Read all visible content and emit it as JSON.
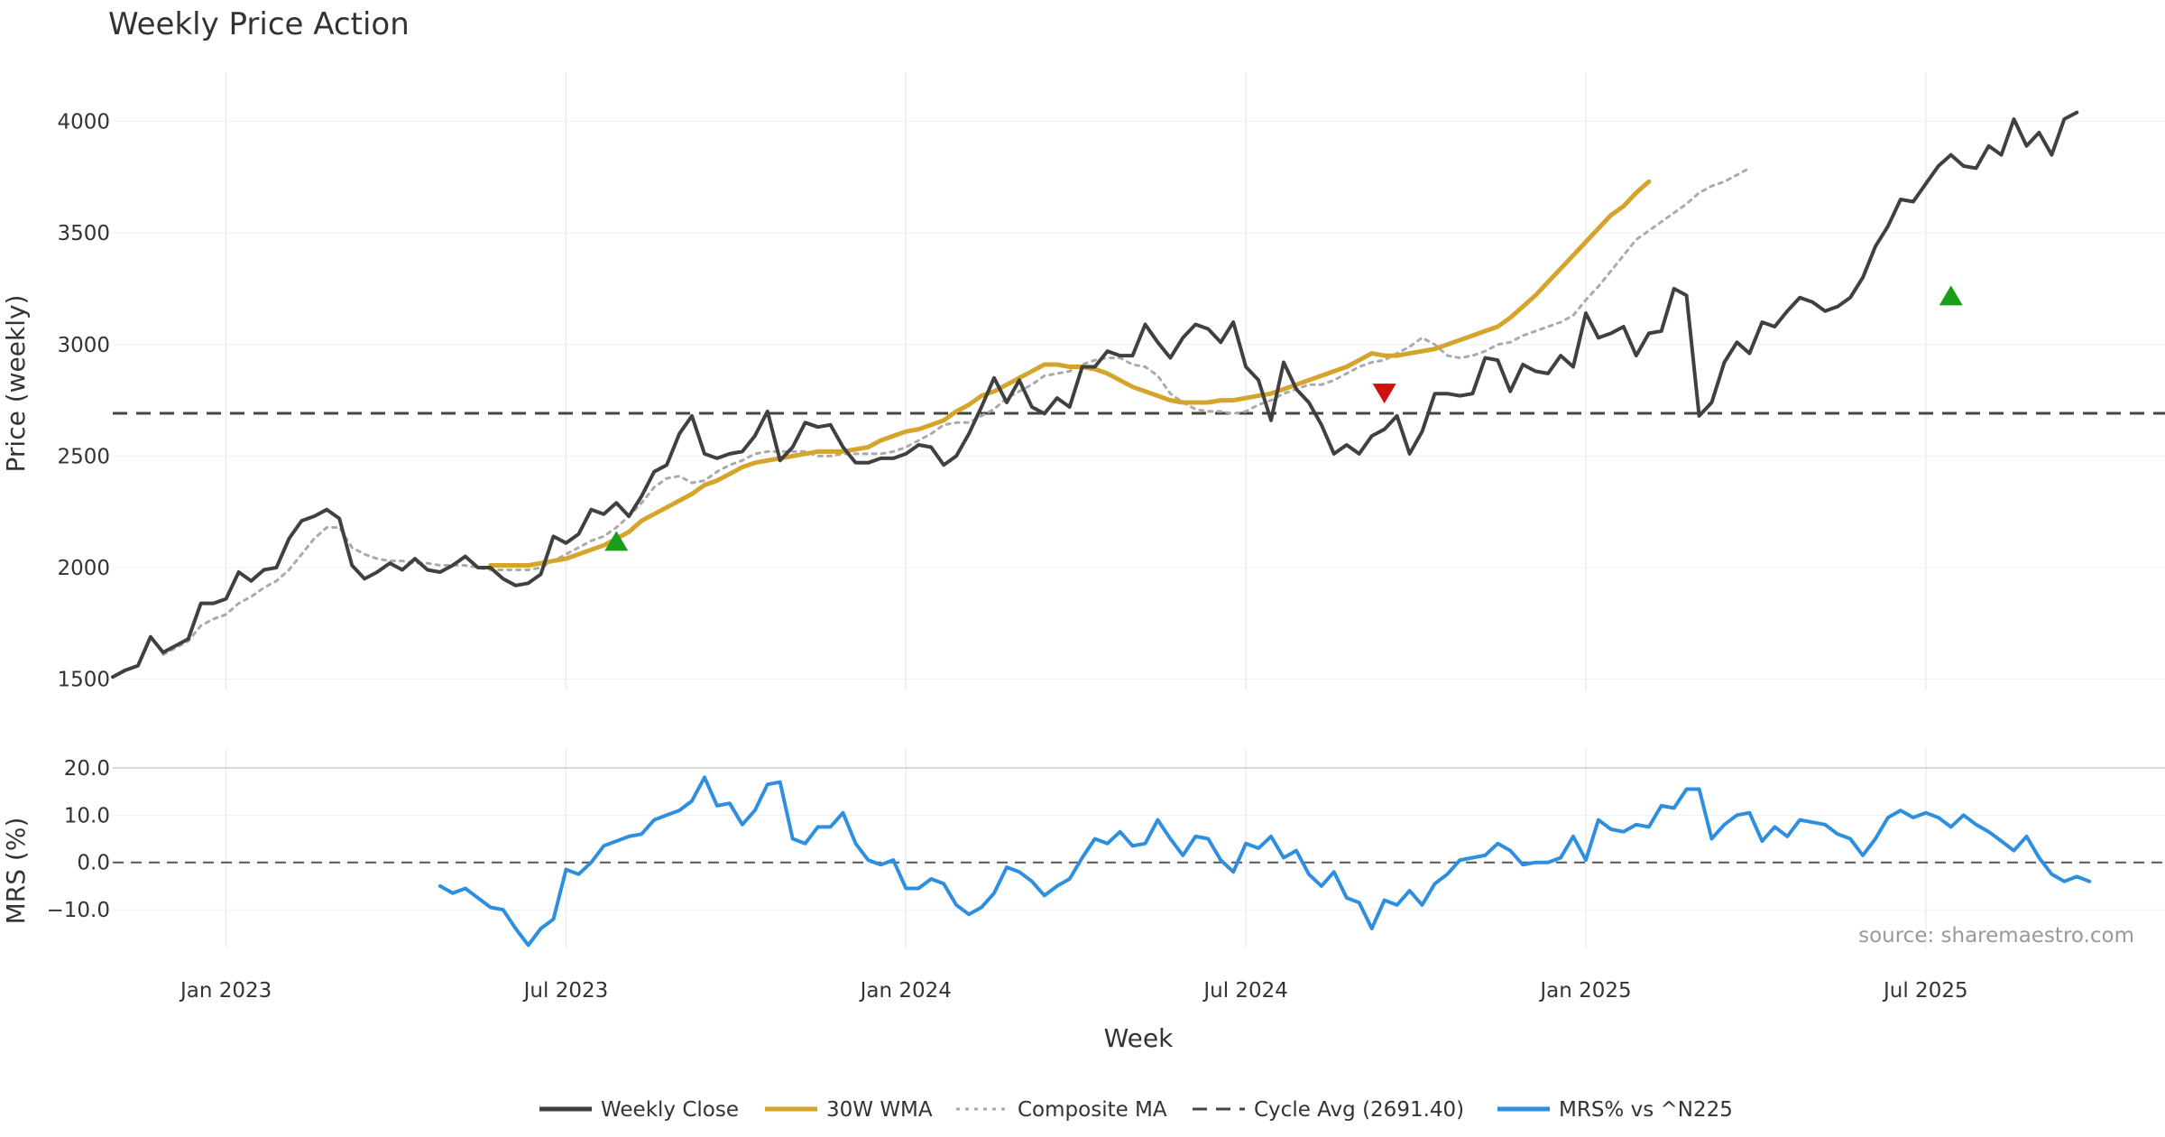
{
  "chart_data": {
    "type": "line",
    "title": "Weekly Price Action",
    "xlabel": "Week",
    "x_ticks": [
      "Jan 2023",
      "Jul 2023",
      "Jan 2024",
      "Jul 2024",
      "Jan 2025",
      "Jul 2025"
    ],
    "x_tick_positions_week": [
      9,
      36,
      63,
      90,
      117,
      144
    ],
    "weeks_total": 163,
    "source": "source: sharemaestro.com",
    "price_panel": {
      "ylabel": "Price (weekly)",
      "ylim": [
        1450,
        4180
      ],
      "yticks": [
        1500,
        2000,
        2500,
        3000,
        3500,
        4000
      ],
      "grid": true,
      "cycle_avg": 2691.4,
      "series": [
        {
          "name": "Weekly Close",
          "color": "#404040",
          "start_week": 0,
          "values": [
            1510,
            1540,
            1560,
            1690,
            1620,
            1650,
            1680,
            1840,
            1840,
            1860,
            1980,
            1940,
            1990,
            2000,
            2130,
            2210,
            2230,
            2260,
            2220,
            2010,
            1950,
            1980,
            2020,
            1990,
            2040,
            1990,
            1980,
            2010,
            2050,
            2000,
            2000,
            1950,
            1920,
            1930,
            1970,
            2140,
            2110,
            2150,
            2260,
            2240,
            2290,
            2230,
            2320,
            2430,
            2460,
            2600,
            2680,
            2510,
            2490,
            2510,
            2520,
            2590,
            2700,
            2480,
            2540,
            2650,
            2630,
            2640,
            2540,
            2470,
            2470,
            2490,
            2490,
            2510,
            2550,
            2540,
            2460,
            2500,
            2600,
            2720,
            2850,
            2740,
            2840,
            2720,
            2690,
            2760,
            2720,
            2900,
            2900,
            2970,
            2950,
            2950,
            3090,
            3010,
            2940,
            3030,
            3090,
            3070,
            3010,
            3100,
            2900,
            2840,
            2660,
            2920,
            2800,
            2740,
            2640,
            2510,
            2550,
            2510,
            2590,
            2620,
            2680,
            2510,
            2610,
            2780,
            2780,
            2770,
            2780,
            2940,
            2930,
            2790,
            2910,
            2880,
            2870,
            2950,
            2900,
            3140,
            3030,
            3050,
            3080,
            2950,
            3050,
            3060,
            3250,
            3220,
            2680,
            2740,
            2920,
            3010,
            2960,
            3100,
            3080,
            3150,
            3210,
            3190,
            3150,
            3170,
            3210,
            3300,
            3440,
            3530,
            3650,
            3640,
            3720,
            3800,
            3850,
            3800,
            3790,
            3890,
            3850,
            4010,
            3890,
            3950,
            3850,
            4010,
            4040
          ]
        },
        {
          "name": "Composite MA",
          "color": "#aaaaaa",
          "start_week": 4,
          "values": [
            1610,
            1640,
            1670,
            1740,
            1770,
            1790,
            1840,
            1870,
            1910,
            1940,
            1990,
            2060,
            2130,
            2180,
            2180,
            2090,
            2060,
            2040,
            2030,
            2030,
            2020,
            2020,
            2010,
            2010,
            2010,
            2000,
            1990,
            1990,
            1990,
            1990,
            2000,
            2030,
            2060,
            2090,
            2120,
            2140,
            2180,
            2230,
            2290,
            2360,
            2400,
            2410,
            2380,
            2390,
            2430,
            2460,
            2480,
            2510,
            2520,
            2520,
            2520,
            2520,
            2500,
            2500,
            2510,
            2510,
            2510,
            2510,
            2520,
            2540,
            2570,
            2600,
            2640,
            2650,
            2650,
            2680,
            2710,
            2760,
            2790,
            2820,
            2860,
            2870,
            2880,
            2910,
            2930,
            2940,
            2940,
            2910,
            2900,
            2860,
            2780,
            2740,
            2710,
            2700,
            2700,
            2690,
            2700,
            2730,
            2750,
            2780,
            2800,
            2820,
            2820,
            2840,
            2870,
            2900,
            2920,
            2930,
            2960,
            2990,
            3030,
            3000,
            2950,
            2940,
            2950,
            2970,
            3000,
            3010,
            3040,
            3060,
            3080,
            3100,
            3130,
            3200,
            3260,
            3330,
            3400,
            3470,
            3510,
            3550,
            3590,
            3630,
            3680,
            3710,
            3730,
            3760,
            3790
          ]
        },
        {
          "name": "30W WMA",
          "color": "#d4a52a",
          "start_week": 30,
          "values": [
            2010,
            2010,
            2010,
            2010,
            2020,
            2030,
            2040,
            2060,
            2080,
            2100,
            2130,
            2160,
            2210,
            2240,
            2270,
            2300,
            2330,
            2370,
            2390,
            2420,
            2450,
            2470,
            2480,
            2490,
            2500,
            2510,
            2520,
            2520,
            2520,
            2530,
            2540,
            2570,
            2590,
            2610,
            2620,
            2640,
            2660,
            2700,
            2730,
            2770,
            2790,
            2820,
            2850,
            2880,
            2910,
            2910,
            2900,
            2900,
            2890,
            2870,
            2840,
            2810,
            2790,
            2770,
            2750,
            2740,
            2740,
            2740,
            2750,
            2750,
            2760,
            2770,
            2780,
            2800,
            2820,
            2840,
            2860,
            2880,
            2900,
            2930,
            2960,
            2950,
            2950,
            2960,
            2970,
            2980,
            3000,
            3020,
            3040,
            3060,
            3080,
            3120,
            3170,
            3220,
            3280,
            3340,
            3400,
            3460,
            3520,
            3580,
            3620,
            3680,
            3730
          ]
        }
      ],
      "signals": [
        {
          "type": "buy",
          "week": 40,
          "value": 2120,
          "color": "#1a9e1a"
        },
        {
          "type": "sell",
          "week": 101,
          "value": 2780,
          "color": "#cc1111"
        },
        {
          "type": "buy",
          "week": 146,
          "value": 3220,
          "color": "#1a9e1a"
        }
      ]
    },
    "mrs_panel": {
      "ylabel": "MRS (%)",
      "ylim": [
        -18,
        24
      ],
      "yticks": [
        20.0,
        10.0,
        0.0,
        -10.0
      ],
      "ytick_labels": [
        "20.0",
        "10.0",
        "0.0",
        "−10.0"
      ],
      "series": {
        "name": "MRS% vs ^N225",
        "color": "#2e8fe0",
        "start_week": 26,
        "values": [
          -5,
          -6.5,
          -5.5,
          -7.5,
          -9.5,
          -10,
          -14,
          -17.5,
          -14,
          -12,
          -1.5,
          -2.5,
          0,
          3.5,
          4.5,
          5.5,
          6,
          9,
          10,
          11,
          13,
          18,
          12,
          12.5,
          8,
          11,
          16.5,
          17,
          5,
          4,
          7.5,
          7.5,
          10.5,
          4,
          0.5,
          -0.5,
          0.5,
          -5.5,
          -5.5,
          -3.5,
          -4.5,
          -9,
          -11,
          -9.5,
          -6.5,
          -1,
          -2,
          -4,
          -7,
          -5,
          -3.5,
          1,
          5,
          4,
          6.5,
          3.5,
          4,
          9,
          5,
          1.5,
          5.5,
          5,
          0.5,
          -2,
          4,
          3,
          5.5,
          1,
          2.5,
          -2.5,
          -5,
          -2,
          -7.5,
          -8.5,
          -14,
          -8,
          -9,
          -6,
          -9,
          -4.5,
          -2.5,
          0.5,
          1,
          1.5,
          4,
          2.5,
          -0.5,
          0,
          0,
          1,
          5.5,
          0.5,
          9,
          7,
          6.5,
          8,
          7.5,
          12,
          11.5,
          15.5,
          15.5,
          5,
          8,
          10,
          10.5,
          4.5,
          7.5,
          5.5,
          9,
          8.5,
          8,
          6,
          5,
          1.5,
          5,
          9.5,
          11,
          9.5,
          10.5,
          9.5,
          7.5,
          10,
          8,
          6.5,
          4.5,
          2.5,
          5.5,
          1,
          -2.5,
          -4,
          -3,
          -4
        ]
      }
    },
    "legend": [
      {
        "label": "Weekly Close",
        "style": "solid",
        "color": "#404040"
      },
      {
        "label": "30W WMA",
        "style": "solid",
        "color": "#d4a52a"
      },
      {
        "label": "Composite MA",
        "style": "dotted",
        "color": "#aaaaaa"
      },
      {
        "label": "Cycle Avg (2691.40)",
        "style": "dashed",
        "color": "#444444"
      },
      {
        "label": "MRS% vs ^N225",
        "style": "solid",
        "color": "#2e8fe0"
      }
    ]
  }
}
